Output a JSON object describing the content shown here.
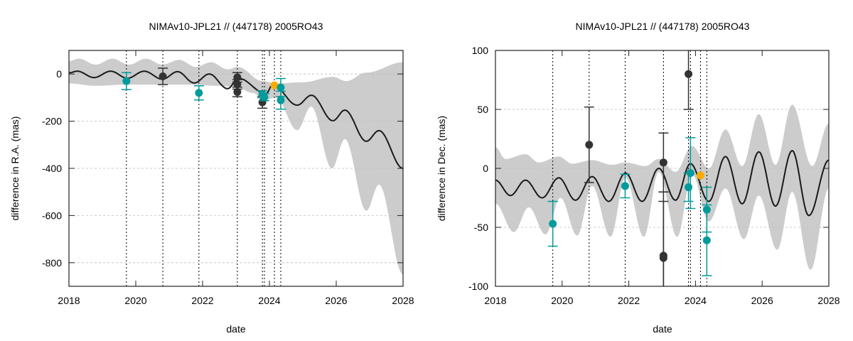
{
  "colors": {
    "band": "#cccccc",
    "model": "#1a1a1a",
    "dark_points": "#333333",
    "teal_points": "#009b9b",
    "orange_point": "#ffaa00",
    "grid": "#bbbbbb"
  },
  "chart_data": [
    {
      "type": "line",
      "title": "NIMAv10-JPL21 // (447178) 2005RO43",
      "xlabel": "date",
      "ylabel": "difference in R.A. (mas)",
      "xlim": [
        2018,
        2028
      ],
      "ylim": [
        -900,
        100
      ],
      "xticks": [
        "2018",
        "2020",
        "2022",
        "2024",
        "2026",
        "2028"
      ],
      "yticks": [
        "0",
        "-200",
        "-400",
        "-600",
        "-800"
      ],
      "ytick_values": [
        0,
        -200,
        -400,
        -600,
        -800
      ],
      "grid": "horizontal dashed",
      "observation_epochs": [
        2019.72,
        2020.81,
        2021.89,
        2023.04,
        2023.79,
        2023.85,
        2024.15,
        2024.34
      ],
      "model_curve": [
        [
          2018,
          5
        ],
        [
          2018.25,
          12
        ],
        [
          2018.75,
          -15
        ],
        [
          2019.25,
          12
        ],
        [
          2019.75,
          -18
        ],
        [
          2020.25,
          12
        ],
        [
          2020.8,
          -22
        ],
        [
          2021.25,
          10
        ],
        [
          2021.75,
          -38
        ],
        [
          2022.2,
          0
        ],
        [
          2022.75,
          -62
        ],
        [
          2023.07,
          -18
        ],
        [
          2023.9,
          -83
        ],
        [
          2024.1,
          -45
        ],
        [
          2024.83,
          -132
        ],
        [
          2025.26,
          -90
        ],
        [
          2025.9,
          -198
        ],
        [
          2026.26,
          -153
        ],
        [
          2026.9,
          -285
        ],
        [
          2027.28,
          -240
        ],
        [
          2028,
          -400
        ]
      ],
      "band_upper": [
        [
          2018,
          55
        ],
        [
          2018.3,
          65
        ],
        [
          2018.8,
          40
        ],
        [
          2019.3,
          65
        ],
        [
          2019.8,
          40
        ],
        [
          2020.3,
          65
        ],
        [
          2020.8,
          40
        ],
        [
          2021.3,
          60
        ],
        [
          2021.8,
          30
        ],
        [
          2022.25,
          50
        ],
        [
          2022.75,
          20
        ],
        [
          2023.05,
          30
        ],
        [
          2023.8,
          -30
        ],
        [
          2024.2,
          -40
        ],
        [
          2025,
          -35
        ],
        [
          2025.9,
          -12
        ],
        [
          2026.3,
          -30
        ],
        [
          2026.9,
          6
        ],
        [
          2028,
          50
        ]
      ],
      "band_lower": [
        [
          2018,
          -40
        ],
        [
          2018.8,
          -50
        ],
        [
          2019.7,
          -45
        ],
        [
          2020.5,
          -45
        ],
        [
          2021.5,
          -45
        ],
        [
          2022.5,
          -50
        ],
        [
          2023,
          -55
        ],
        [
          2023.5,
          -80
        ],
        [
          2023.85,
          -110
        ],
        [
          2024.2,
          -100
        ],
        [
          2024.83,
          -238
        ],
        [
          2025.25,
          -138
        ],
        [
          2025.87,
          -400
        ],
        [
          2026.26,
          -276
        ],
        [
          2026.9,
          -580
        ],
        [
          2027.28,
          -469
        ],
        [
          2028,
          -850
        ]
      ],
      "points": [
        {
          "group": "teal",
          "x": 2019.72,
          "y": -30,
          "err": 36
        },
        {
          "group": "dark",
          "x": 2020.81,
          "y": -10,
          "err": 35
        },
        {
          "group": "teal",
          "x": 2021.89,
          "y": -80,
          "err": 30
        },
        {
          "group": "dark",
          "x": 2023.04,
          "y": -14,
          "err": 20
        },
        {
          "group": "dark",
          "x": 2023.04,
          "y": -44,
          "err": 20
        },
        {
          "group": "dark",
          "x": 2023.04,
          "y": -76,
          "err": 20
        },
        {
          "group": "dark",
          "x": 2023.79,
          "y": -120,
          "err": 25
        },
        {
          "group": "teal",
          "x": 2023.79,
          "y": -86,
          "err": 15
        },
        {
          "group": "teal",
          "x": 2023.85,
          "y": -98,
          "err": 15
        },
        {
          "group": "orange",
          "x": 2024.15,
          "y": -48,
          "err": 0
        },
        {
          "group": "teal",
          "x": 2024.34,
          "y": -57,
          "err": 38
        },
        {
          "group": "teal",
          "x": 2024.34,
          "y": -111,
          "err": 38
        }
      ]
    },
    {
      "type": "line",
      "title": "NIMAv10-JPL21 // (447178) 2005RO43",
      "xlabel": "date",
      "ylabel": "difference in Dec. (mas)",
      "xlim": [
        2018,
        2028
      ],
      "ylim": [
        -100,
        100
      ],
      "xticks": [
        "2018",
        "2020",
        "2022",
        "2024",
        "2026",
        "2028"
      ],
      "yticks": [
        "100",
        "50",
        "0",
        "-50",
        "-100"
      ],
      "ytick_values": [
        100,
        50,
        0,
        -50,
        -100
      ],
      "grid": "horizontal dashed",
      "observation_epochs": [
        2019.72,
        2020.81,
        2021.89,
        2023.04,
        2023.79,
        2023.85,
        2024.15,
        2024.34
      ],
      "model_curve": [
        [
          2018,
          -10
        ],
        [
          2018.45,
          -23
        ],
        [
          2018.9,
          -10
        ],
        [
          2019.4,
          -25
        ],
        [
          2019.9,
          -8
        ],
        [
          2020.4,
          -27
        ],
        [
          2020.9,
          -7
        ],
        [
          2021.4,
          -28
        ],
        [
          2021.9,
          -4
        ],
        [
          2022.4,
          -28
        ],
        [
          2022.9,
          0
        ],
        [
          2023.4,
          -27
        ],
        [
          2023.85,
          4
        ],
        [
          2024.4,
          -28
        ],
        [
          2024.9,
          10
        ],
        [
          2025.4,
          -30
        ],
        [
          2025.9,
          14
        ],
        [
          2026.4,
          -32
        ],
        [
          2026.9,
          15
        ],
        [
          2027.4,
          -40
        ],
        [
          2028,
          7
        ]
      ],
      "band_upper": [
        [
          2018,
          18
        ],
        [
          2018.3,
          8
        ],
        [
          2018.9,
          12
        ],
        [
          2019.3,
          5
        ],
        [
          2019.9,
          10
        ],
        [
          2020.3,
          4
        ],
        [
          2020.9,
          7
        ],
        [
          2021.5,
          3
        ],
        [
          2021.9,
          5
        ],
        [
          2022.5,
          2
        ],
        [
          2022.9,
          8
        ],
        [
          2023.4,
          -3
        ],
        [
          2023.9,
          19
        ],
        [
          2024.4,
          0
        ],
        [
          2024.9,
          33
        ],
        [
          2025.4,
          2
        ],
        [
          2025.9,
          46
        ],
        [
          2026.4,
          3
        ],
        [
          2026.9,
          54
        ],
        [
          2027.5,
          2
        ],
        [
          2028,
          38
        ]
      ],
      "band_lower": [
        [
          2018,
          -30
        ],
        [
          2018.55,
          -54
        ],
        [
          2019,
          -33
        ],
        [
          2019.5,
          -56
        ],
        [
          2019.95,
          -25
        ],
        [
          2020.45,
          -57
        ],
        [
          2020.9,
          -15
        ],
        [
          2021.45,
          -58
        ],
        [
          2021.9,
          -8
        ],
        [
          2022.45,
          -58
        ],
        [
          2022.9,
          -3
        ],
        [
          2023.45,
          -58
        ],
        [
          2023.9,
          -5
        ],
        [
          2024.4,
          -45
        ],
        [
          2024.9,
          -17
        ],
        [
          2025.45,
          -60
        ],
        [
          2025.9,
          -23
        ],
        [
          2026.45,
          -69
        ],
        [
          2026.9,
          -20
        ],
        [
          2027.45,
          -86
        ],
        [
          2028,
          -17
        ]
      ],
      "points": [
        {
          "group": "teal",
          "x": 2019.72,
          "y": -47,
          "err": 19
        },
        {
          "group": "dark",
          "x": 2020.81,
          "y": 20,
          "err": 32
        },
        {
          "group": "teal",
          "x": 2021.89,
          "y": -15,
          "err": 10
        },
        {
          "group": "dark",
          "x": 2023.04,
          "y": 5,
          "err": 25
        },
        {
          "group": "dark",
          "x": 2023.04,
          "y": -74,
          "err": 54
        },
        {
          "group": "dark",
          "x": 2023.04,
          "y": -76,
          "err": 48
        },
        {
          "group": "dark",
          "x": 2023.79,
          "y": 80,
          "err": 30
        },
        {
          "group": "teal",
          "x": 2023.79,
          "y": -16,
          "err": 12
        },
        {
          "group": "teal",
          "x": 2023.85,
          "y": -4,
          "err": 30
        },
        {
          "group": "orange",
          "x": 2024.15,
          "y": -6,
          "err": 0
        },
        {
          "group": "teal",
          "x": 2024.34,
          "y": -35,
          "err": 19
        },
        {
          "group": "teal",
          "x": 2024.34,
          "y": -61,
          "err": 30
        }
      ]
    }
  ]
}
